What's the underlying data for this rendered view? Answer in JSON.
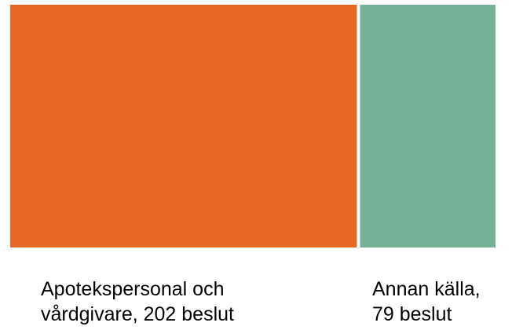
{
  "chart_data": {
    "type": "treemap",
    "categories": [
      "Apotekspersonal och\nvårdgivare, 202 beslut",
      "Annan källa,\n79 beslut"
    ],
    "values": [
      202,
      79
    ],
    "colors": [
      "#e96725",
      "#76b096"
    ],
    "title": "",
    "legend": "none",
    "labels_position": "below"
  }
}
